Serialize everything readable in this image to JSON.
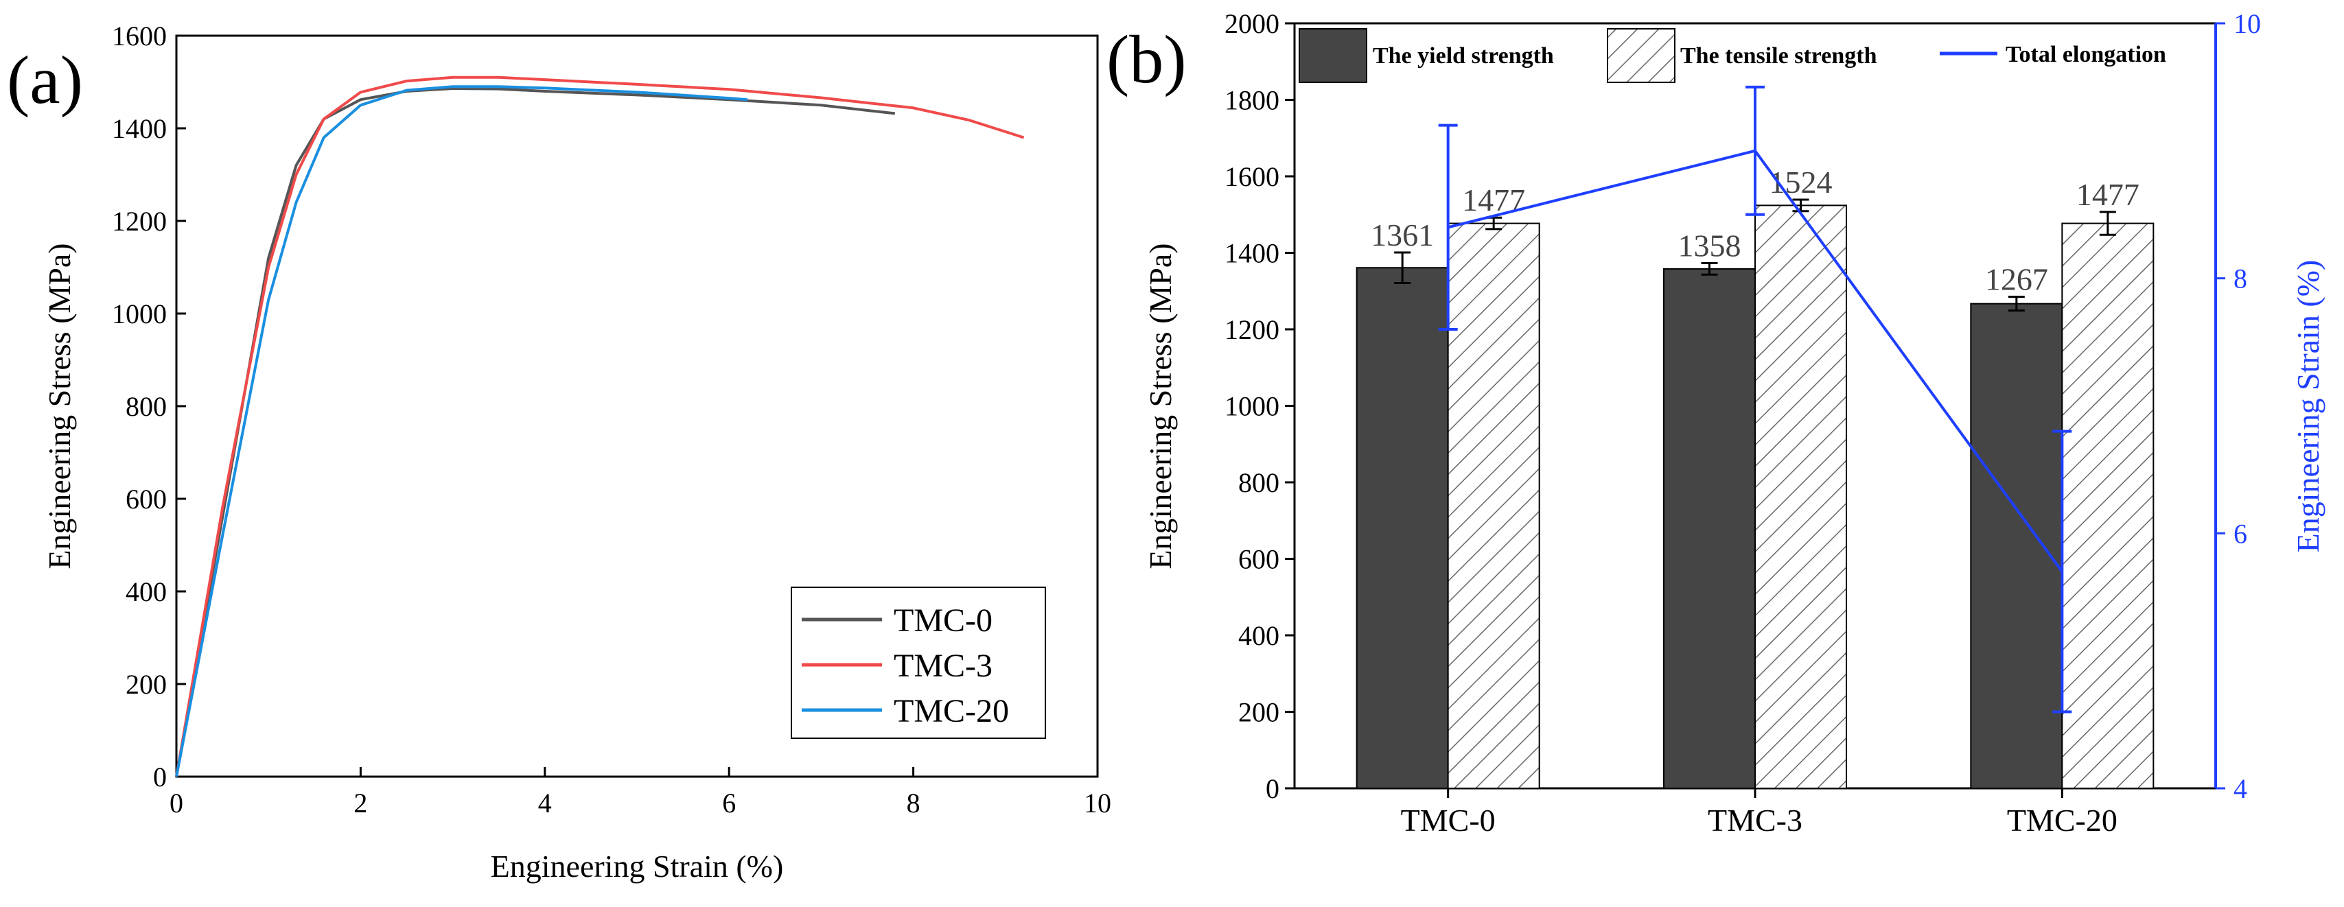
{
  "chart_data": [
    {
      "panel": "a",
      "panel_label": "(a)",
      "type": "line",
      "xlabel": "Engineering Strain (%)",
      "ylabel": "Engineering Stress (MPa)",
      "xlim": [
        0,
        10
      ],
      "ylim": [
        0,
        1600
      ],
      "xticks": [
        0,
        2,
        4,
        6,
        8,
        10
      ],
      "yticks": [
        0,
        200,
        400,
        600,
        800,
        1000,
        1200,
        1400,
        1600
      ],
      "legend_position": "lower-right",
      "series": [
        {
          "name": "TMC-0",
          "color": "#555555",
          "points": [
            [
              0,
              0
            ],
            [
              0.5,
              560
            ],
            [
              1.0,
              1120
            ],
            [
              1.3,
              1320
            ],
            [
              1.6,
              1420
            ],
            [
              2.0,
              1462
            ],
            [
              2.5,
              1480
            ],
            [
              3.0,
              1486
            ],
            [
              3.5,
              1485
            ],
            [
              4.0,
              1480
            ],
            [
              5.0,
              1472
            ],
            [
              6.0,
              1462
            ],
            [
              7.0,
              1450
            ],
            [
              7.8,
              1432
            ]
          ]
        },
        {
          "name": "TMC-3",
          "color": "#f04a4a",
          "points": [
            [
              0,
              0
            ],
            [
              0.5,
              580
            ],
            [
              1.0,
              1100
            ],
            [
              1.3,
              1300
            ],
            [
              1.6,
              1420
            ],
            [
              2.0,
              1478
            ],
            [
              2.5,
              1502
            ],
            [
              3.0,
              1510
            ],
            [
              3.5,
              1510
            ],
            [
              4.0,
              1505
            ],
            [
              5.0,
              1495
            ],
            [
              6.0,
              1484
            ],
            [
              7.0,
              1466
            ],
            [
              8.0,
              1444
            ],
            [
              8.6,
              1418
            ],
            [
              9.2,
              1380
            ]
          ]
        },
        {
          "name": "TMC-20",
          "color": "#1a8fe0",
          "points": [
            [
              0,
              0
            ],
            [
              0.5,
              520
            ],
            [
              1.0,
              1030
            ],
            [
              1.3,
              1240
            ],
            [
              1.6,
              1380
            ],
            [
              2.0,
              1450
            ],
            [
              2.5,
              1482
            ],
            [
              3.0,
              1490
            ],
            [
              3.5,
              1490
            ],
            [
              4.0,
              1487
            ],
            [
              5.0,
              1478
            ],
            [
              6.0,
              1465
            ],
            [
              6.2,
              1462
            ]
          ]
        }
      ]
    },
    {
      "panel": "b",
      "panel_label": "(b)",
      "type": "bar",
      "categories": [
        "TMC-0",
        "TMC-3",
        "TMC-20"
      ],
      "ylabel": "Engineering Stress (MPa)",
      "y2label": "Engineering Strain (%)",
      "ylim": [
        0,
        2000
      ],
      "yticks": [
        0,
        200,
        400,
        600,
        800,
        1000,
        1200,
        1400,
        1600,
        1800,
        2000
      ],
      "y2lim": [
        4,
        10
      ],
      "y2ticks": [
        4,
        6,
        8,
        10
      ],
      "legend_position": "top",
      "series": [
        {
          "name": "The yield strength",
          "style": "solid",
          "color": "#454545",
          "values": [
            1361,
            1358,
            1267
          ],
          "labels": [
            "1361",
            "1358",
            "1267"
          ],
          "errors": [
            40,
            15,
            18
          ]
        },
        {
          "name": "The tensile strength",
          "style": "hatched",
          "color": "#ffffff",
          "values": [
            1477,
            1524,
            1477
          ],
          "labels": [
            "1477",
            "1524",
            "1477"
          ],
          "errors": [
            15,
            15,
            30
          ]
        }
      ],
      "line_series": {
        "name": "Total elongation",
        "color": "#1f3fff",
        "axis": "right",
        "values": [
          8.4,
          9.0,
          5.7
        ],
        "errors": [
          0.8,
          0.5,
          1.1
        ]
      }
    }
  ]
}
